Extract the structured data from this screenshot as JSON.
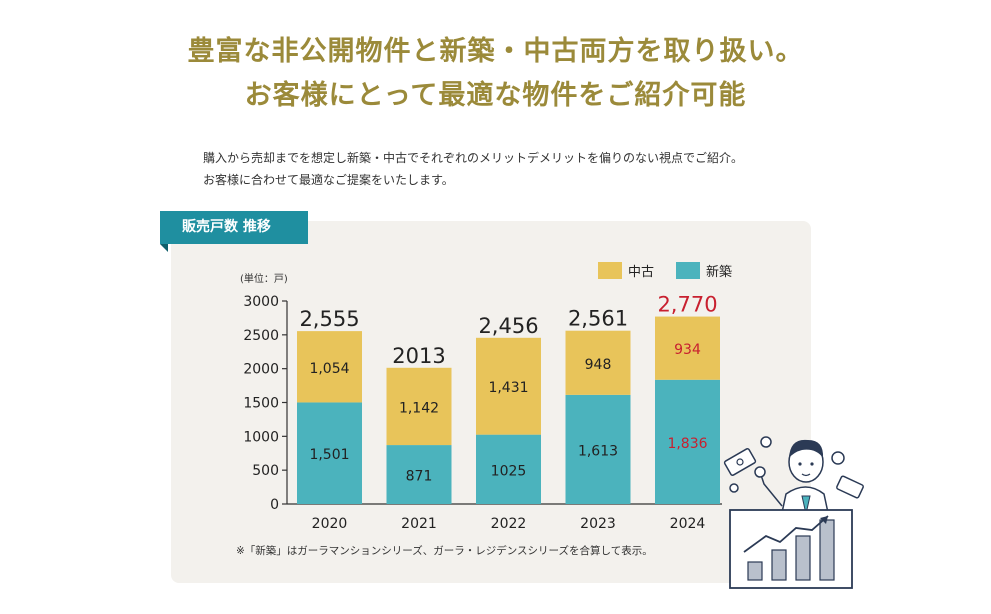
{
  "headline": {
    "line1": "豊富な非公開物件と新築・中古両方を取り扱い。",
    "line2": "お客様にとって最適な物件をご紹介可能"
  },
  "intro": {
    "line1": "購入から売却までを想定し新築・中古でそれぞれのメリットデメリットを偏りのない視点でご紹介。",
    "line2": "お客様に合わせて最適なご提案をいたします。"
  },
  "section_tab": "販売戸数 推移",
  "footnote": "※「新築」はガーラマンションシリーズ、ガーラ・レジデンスシリーズを合算して表示。",
  "colors": {
    "headline": "#9b8a3a",
    "used": "#e8c45a",
    "new": "#4bb3bd",
    "highlight": "#c8202f",
    "tab": "#1f8fa0",
    "panel": "#f3f1ed"
  },
  "chart_data": {
    "type": "bar",
    "stacked": true,
    "unit_label": "(単位：戸)",
    "categories": [
      "2020",
      "2021",
      "2022",
      "2023",
      "2024"
    ],
    "series": [
      {
        "name": "新築",
        "color": "#4bb3bd",
        "values": [
          1501,
          871,
          1025,
          1613,
          1836
        ],
        "labels": [
          "1,501",
          "871",
          "1025",
          "1,613",
          "1,836"
        ]
      },
      {
        "name": "中古",
        "color": "#e8c45a",
        "values": [
          1054,
          1142,
          1431,
          948,
          934
        ],
        "labels": [
          "1,054",
          "1,142",
          "1,431",
          "948",
          "934"
        ]
      }
    ],
    "totals": [
      2555,
      2013,
      2456,
      2561,
      2770
    ],
    "total_labels": [
      "2,555",
      "2013",
      "2,456",
      "2,561",
      "2,770"
    ],
    "highlight_category": "2024",
    "ylim": [
      0,
      3000
    ],
    "yticks": [
      0,
      500,
      1000,
      1500,
      2000,
      2500,
      3000
    ],
    "legend": {
      "position": "top-right",
      "order": [
        "中古",
        "新築"
      ]
    }
  }
}
